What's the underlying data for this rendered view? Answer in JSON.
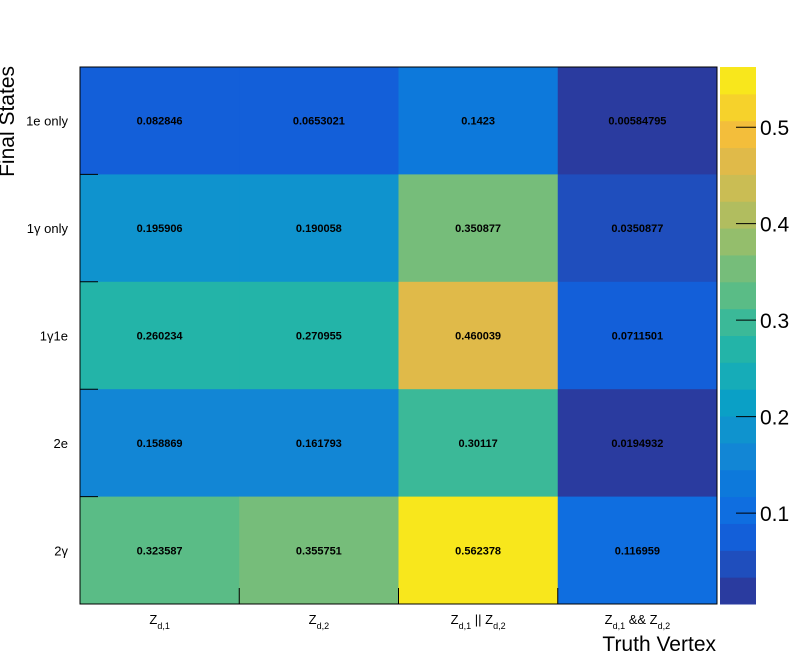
{
  "chart_data": {
    "type": "heatmap",
    "xlabel": "Truth Vertex",
    "ylabel": "Final States",
    "x_categories": [
      {
        "main": "Z",
        "sub": "d,1"
      },
      {
        "main": "Z",
        "sub": "d,2"
      },
      {
        "main": "Z",
        "sub": "d,1",
        "op": "|| Z",
        "sub2": "d,2"
      },
      {
        "main": "Z",
        "sub": "d,1",
        "op": "&& Z",
        "sub2": "d,2"
      }
    ],
    "y_categories": [
      "1e only",
      "1γ only",
      "1γ1e",
      "2e",
      "2γ"
    ],
    "values": [
      [
        0.082846,
        0.0653021,
        0.1423,
        0.00584795
      ],
      [
        0.195906,
        0.190058,
        0.350877,
        0.0350877
      ],
      [
        0.260234,
        0.270955,
        0.460039,
        0.0711501
      ],
      [
        0.158869,
        0.161793,
        0.30117,
        0.0194932
      ],
      [
        0.323587,
        0.355751,
        0.562378,
        0.116959
      ]
    ],
    "value_labels": [
      [
        "0.082846",
        "0.0653021",
        "0.1423",
        "0.00584795"
      ],
      [
        "0.195906",
        "0.190058",
        "0.350877",
        "0.0350877"
      ],
      [
        "0.260234",
        "0.270955",
        "0.460039",
        "0.0711501"
      ],
      [
        "0.158869",
        "0.161793",
        "0.30117",
        "0.0194932"
      ],
      [
        "0.323587",
        "0.355751",
        "0.562378",
        "0.116959"
      ]
    ],
    "zlim": [
      0.00584795,
      0.562378
    ],
    "colorbar_ticks": [
      "0.1",
      "0.2",
      "0.3",
      "0.4",
      "0.5"
    ],
    "colormap": "parula",
    "grid": false,
    "legend": "colorbar-right"
  }
}
